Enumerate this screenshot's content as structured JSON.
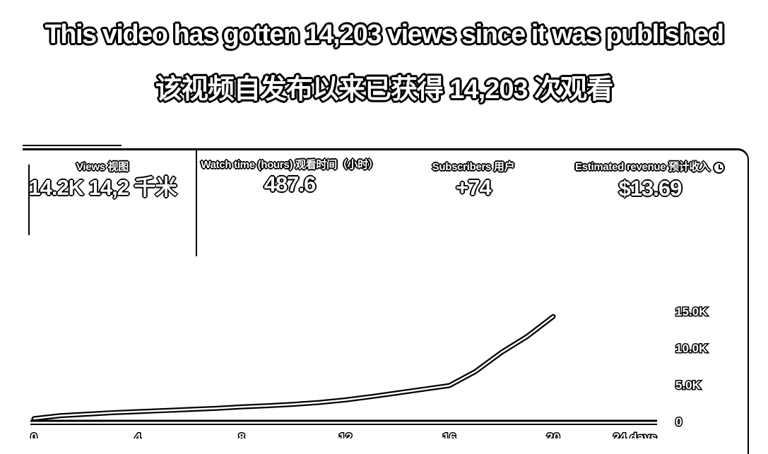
{
  "caption": {
    "english": "This video has gotten 14,203 views since it was published",
    "chinese": "该视频自发布以来已获得 14,203 次观看"
  },
  "metrics": [
    {
      "label": "Views 视图",
      "value": "14.2K  14,2 千米"
    },
    {
      "label": "Watch time (hours) 观看时间（小时）",
      "value": "487.6"
    },
    {
      "label": "Subscribers 用户",
      "value": "+74"
    },
    {
      "label": "Estimated revenue 预计收入",
      "value": "$13.69",
      "icon": "info-icon"
    }
  ],
  "chart_data": {
    "type": "line",
    "x_ticks": [
      "0",
      "4",
      "8",
      "12",
      "16",
      "20",
      "24 days"
    ],
    "y_ticks": [
      "15.0K",
      "10.0K",
      "5.0K",
      "0"
    ],
    "ylim": [
      0,
      15000
    ],
    "xlim": [
      0,
      24
    ],
    "axis_position": "right",
    "grid": false,
    "series": [
      {
        "x": [
          0,
          1,
          2,
          3,
          4,
          5,
          6,
          7,
          8,
          9,
          10,
          11,
          12,
          13,
          14,
          15,
          16,
          17,
          18,
          19,
          20
        ],
        "values": [
          300,
          700,
          900,
          1100,
          1250,
          1400,
          1550,
          1700,
          1900,
          2050,
          2250,
          2500,
          2850,
          3300,
          3800,
          4300,
          4800,
          6700,
          9300,
          11500,
          14203
        ]
      }
    ]
  }
}
